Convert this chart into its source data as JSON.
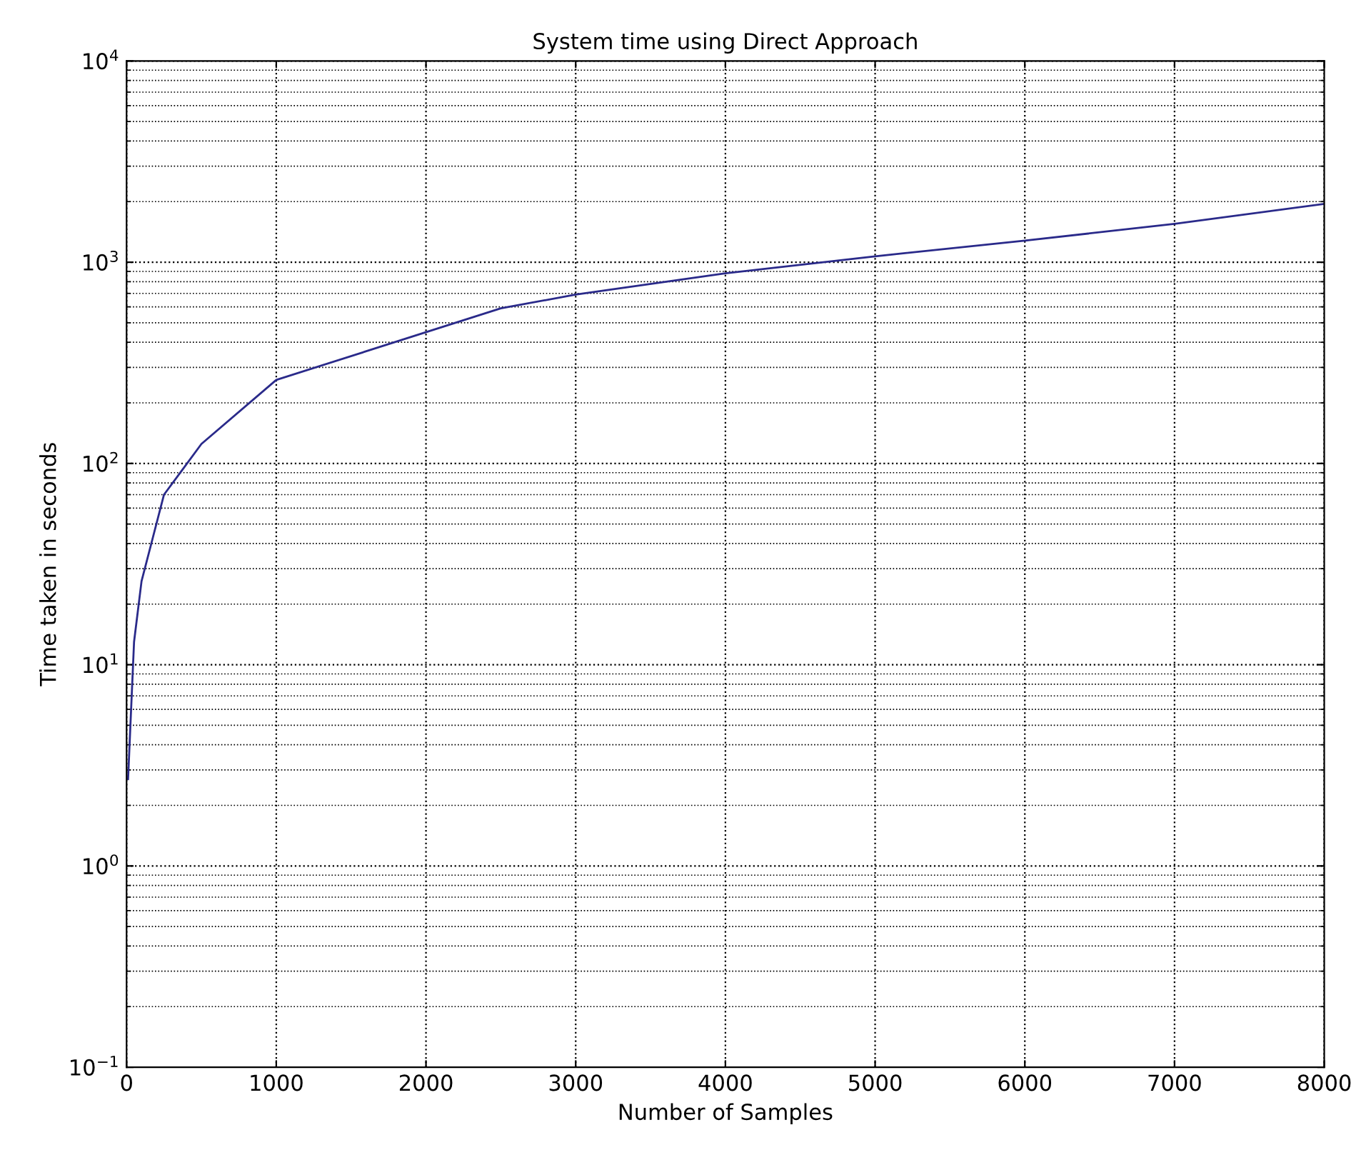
{
  "chart_data": {
    "type": "line",
    "title": "System time using Direct Approach",
    "xlabel": "Number of Samples",
    "ylabel": "Time taken in seconds",
    "x": [
      10,
      50,
      100,
      250,
      500,
      1000,
      2500,
      3000,
      4000,
      5000,
      6000,
      7000,
      8000
    ],
    "series": [
      {
        "color": "#2a2a8a",
        "values": [
          2.7,
          13,
          26,
          70,
          125,
          260,
          590,
          690,
          880,
          1070,
          1280,
          1550,
          1950
        ]
      }
    ],
    "log": "y",
    "xlim": [
      0,
      8000
    ],
    "xticks": [
      0,
      1000,
      2000,
      3000,
      4000,
      5000,
      6000,
      7000,
      8000
    ],
    "ylim": [
      0.1,
      10000
    ],
    "yticks": [
      {
        "value": 0.1,
        "label": "10$^{−1}$"
      },
      {
        "value": 1,
        "label": "10$^{0}$"
      },
      {
        "value": 10,
        "label": "10$^{1}$"
      },
      {
        "value": 100,
        "label": "10$^{2}$"
      },
      {
        "value": 1000,
        "label": "10$^{3}$"
      },
      {
        "value": 10000,
        "label": "10$^{4}$"
      }
    ],
    "grid": true,
    "marker": "none",
    "line_style": "solid"
  }
}
